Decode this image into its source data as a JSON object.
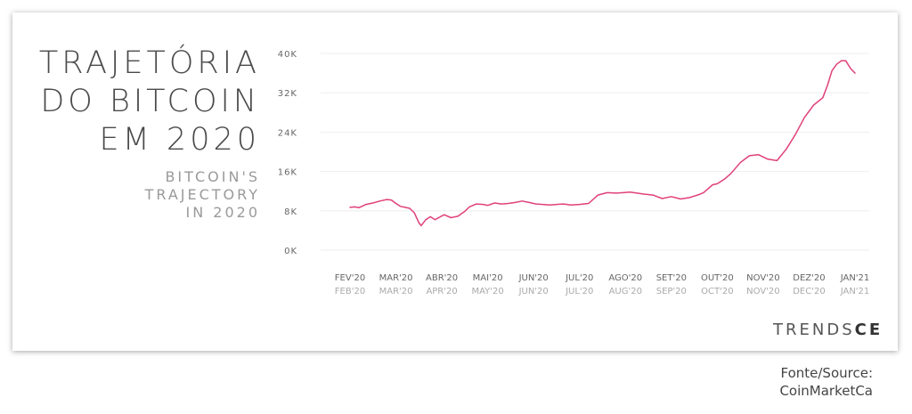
{
  "title_lines": [
    "TRAJETÓRIA",
    "DO BITCOIN",
    "EM 2020"
  ],
  "subtitle_lines": [
    "BITCOIN'S",
    "TRAJECTORY",
    "IN 2020"
  ],
  "logo": {
    "prefix": "TRENDS",
    "suffix": "CE"
  },
  "source_lines": [
    "Fonte/Source:",
    "CoinMarketCa"
  ],
  "colors": {
    "line": "#e0407a",
    "grid": "#eeeeee",
    "axis_text": "#666666",
    "axis_text_secondary": "#aaaaaa"
  },
  "chart_data": {
    "type": "line",
    "ylim": [
      0,
      40000
    ],
    "y_ticks": [
      {
        "value": 0,
        "label": "0K"
      },
      {
        "value": 8000,
        "label": "8K"
      },
      {
        "value": 16000,
        "label": "16K"
      },
      {
        "value": 24000,
        "label": "24K"
      },
      {
        "value": 32000,
        "label": "32K"
      },
      {
        "value": 40000,
        "label": "40K"
      }
    ],
    "x_ticks": [
      {
        "label_pt": "FEV'20",
        "label_en": "FEB'20"
      },
      {
        "label_pt": "MAR'20",
        "label_en": "MAR'20"
      },
      {
        "label_pt": "ABR'20",
        "label_en": "APR'20"
      },
      {
        "label_pt": "MAI'20",
        "label_en": "MAY'20"
      },
      {
        "label_pt": "JUN'20",
        "label_en": "JUN'20"
      },
      {
        "label_pt": "JUL'20",
        "label_en": "JUL'20"
      },
      {
        "label_pt": "AGO'20",
        "label_en": "AUG'20"
      },
      {
        "label_pt": "SET'20",
        "label_en": "SEP'20"
      },
      {
        "label_pt": "OUT'20",
        "label_en": "OCT'20"
      },
      {
        "label_pt": "NOV'20",
        "label_en": "NOV'20"
      },
      {
        "label_pt": "DEZ'20",
        "label_en": "DEC'20"
      },
      {
        "label_pt": "JAN'21",
        "label_en": "JAN'21"
      }
    ],
    "series": [
      {
        "x": [
          0,
          0.1,
          0.2,
          0.35,
          0.5,
          0.65,
          0.8,
          0.9,
          1.0,
          1.1,
          1.2,
          1.3,
          1.4,
          1.5,
          1.55,
          1.65,
          1.75,
          1.85,
          1.95,
          2.05,
          2.2,
          2.35,
          2.5,
          2.6,
          2.75,
          2.9,
          3.0,
          3.15,
          3.3,
          3.45,
          3.6,
          3.75,
          3.9,
          4.05,
          4.2,
          4.35,
          4.5,
          4.65,
          4.8,
          5.0,
          5.2,
          5.4,
          5.6,
          5.8,
          5.95,
          6.1,
          6.25,
          6.4,
          6.6,
          6.8,
          7.0,
          7.2,
          7.4,
          7.5,
          7.6,
          7.7,
          7.8,
          7.9,
          8.0,
          8.15,
          8.3,
          8.5,
          8.7,
          8.9,
          9.1,
          9.3,
          9.5,
          9.7,
          9.9,
          10.1,
          10.3,
          10.4,
          10.5,
          10.6,
          10.7,
          10.8,
          10.9,
          11.0
        ],
        "y": [
          8700,
          8800,
          8650,
          9300,
          9600,
          10000,
          10300,
          10200,
          9500,
          8900,
          8700,
          8500,
          7600,
          5600,
          5000,
          6200,
          6800,
          6200,
          6700,
          7200,
          6600,
          6900,
          7900,
          8800,
          9400,
          9300,
          9100,
          9600,
          9400,
          9500,
          9700,
          10000,
          9700,
          9400,
          9300,
          9200,
          9300,
          9400,
          9200,
          9300,
          9500,
          11200,
          11700,
          11600,
          11700,
          11800,
          11600,
          11400,
          11200,
          10500,
          10900,
          10400,
          10700,
          11000,
          11300,
          11700,
          12500,
          13300,
          13500,
          14400,
          15600,
          17800,
          19200,
          19400,
          18500,
          18200,
          20500,
          23500,
          27000,
          29500,
          31000,
          33500,
          36500,
          37800,
          38500,
          38500,
          37000,
          36000
        ]
      }
    ]
  }
}
